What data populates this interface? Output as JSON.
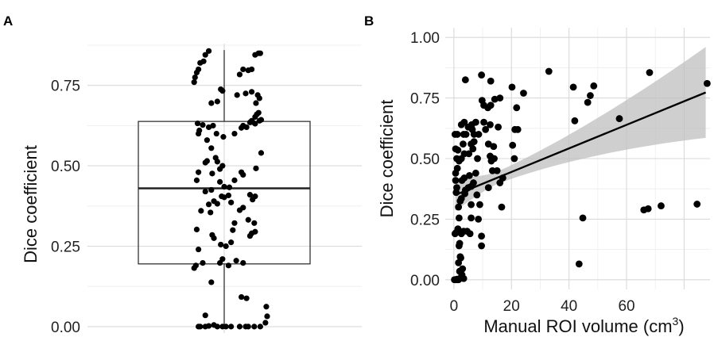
{
  "chart_data": [
    {
      "type": "boxplot",
      "panel_label": "A",
      "xlabel": "",
      "ylabel": "Dice coefficient",
      "ylim": [
        -0.02,
        0.88
      ],
      "yticks": [
        0.0,
        0.25,
        0.5,
        0.75
      ],
      "ytick_labels": [
        "0.00",
        "0.25",
        "0.50",
        "0.75"
      ],
      "grid": true,
      "box": {
        "q1": 0.195,
        "median": 0.43,
        "q3": 0.638,
        "whisker_low": 0.0,
        "whisker_high": 0.86
      },
      "points": [
        [
          -0.3,
          0.0
        ],
        [
          -0.28,
          0.0
        ],
        [
          -0.22,
          0.0
        ],
        [
          -0.18,
          0.002
        ],
        [
          -0.12,
          0.005
        ],
        [
          -0.08,
          0.0
        ],
        [
          -0.02,
          0.0
        ],
        [
          0.02,
          0.0
        ],
        [
          0.18,
          0.0
        ],
        [
          0.25,
          0.0
        ],
        [
          0.28,
          0.0
        ],
        [
          0.35,
          0.0
        ],
        [
          0.42,
          0.0
        ],
        [
          0.48,
          0.012
        ],
        [
          0.5,
          0.032
        ],
        [
          0.49,
          0.062
        ],
        [
          0.08,
          0.0
        ],
        [
          -0.22,
          0.035
        ],
        [
          -0.15,
          0.138
        ],
        [
          0.2,
          0.092
        ],
        [
          0.26,
          0.088
        ],
        [
          -0.35,
          0.182
        ],
        [
          -0.33,
          0.19
        ],
        [
          -0.25,
          0.198
        ],
        [
          -0.05,
          0.198
        ],
        [
          -0.02,
          0.21
        ],
        [
          0.05,
          0.19
        ],
        [
          0.22,
          0.198
        ],
        [
          0.14,
          0.205
        ],
        [
          -0.3,
          0.24
        ],
        [
          -0.32,
          0.302
        ],
        [
          -0.14,
          0.285
        ],
        [
          -0.12,
          0.275
        ],
        [
          -0.04,
          0.255
        ],
        [
          0.02,
          0.25
        ],
        [
          0.08,
          0.262
        ],
        [
          0.1,
          0.3
        ],
        [
          0.12,
          0.322
        ],
        [
          0.3,
          0.282
        ],
        [
          0.32,
          0.29
        ],
        [
          0.36,
          0.295
        ],
        [
          0.35,
          0.322
        ],
        [
          0.28,
          0.332
        ],
        [
          -0.27,
          0.36
        ],
        [
          -0.16,
          0.355
        ],
        [
          -0.18,
          0.38
        ],
        [
          -0.08,
          0.382
        ],
        [
          -0.12,
          0.39
        ],
        [
          -0.03,
          0.405
        ],
        [
          0.0,
          0.402
        ],
        [
          0.05,
          0.408
        ],
        [
          0.08,
          0.386
        ],
        [
          0.18,
          0.362
        ],
        [
          0.22,
          0.37
        ],
        [
          0.33,
          0.395
        ],
        [
          0.3,
          0.41
        ],
        [
          0.36,
          0.405
        ],
        [
          -0.22,
          0.42
        ],
        [
          -0.15,
          0.425
        ],
        [
          0.0,
          0.435
        ],
        [
          0.06,
          0.433
        ],
        [
          -0.05,
          0.45
        ],
        [
          0.12,
          0.455
        ],
        [
          -0.32,
          0.455
        ],
        [
          -0.3,
          0.48
        ],
        [
          -0.14,
          0.476
        ],
        [
          -0.05,
          0.49
        ],
        [
          -0.02,
          0.5
        ],
        [
          0.2,
          0.48
        ],
        [
          0.22,
          0.472
        ],
        [
          0.37,
          0.492
        ],
        [
          -0.22,
          0.51
        ],
        [
          -0.2,
          0.515
        ],
        [
          -0.1,
          0.525
        ],
        [
          -0.08,
          0.513
        ],
        [
          0.43,
          0.54
        ],
        [
          -0.3,
          0.6
        ],
        [
          -0.29,
          0.61
        ],
        [
          -0.2,
          0.58
        ],
        [
          -0.15,
          0.555
        ],
        [
          -0.09,
          0.6
        ],
        [
          -0.01,
          0.59
        ],
        [
          0.12,
          0.6
        ],
        [
          0.2,
          0.618
        ],
        [
          0.22,
          0.625
        ],
        [
          0.26,
          0.62
        ],
        [
          0.3,
          0.635
        ],
        [
          0.33,
          0.636
        ],
        [
          0.36,
          0.631
        ],
        [
          -0.31,
          0.632
        ],
        [
          -0.25,
          0.627
        ],
        [
          -0.18,
          0.62
        ],
        [
          -0.13,
          0.625
        ],
        [
          0.32,
          0.64
        ],
        [
          0.36,
          0.652
        ],
        [
          0.38,
          0.66
        ],
        [
          0.41,
          0.64
        ],
        [
          0.43,
          0.643
        ],
        [
          0.4,
          0.665
        ],
        [
          -0.15,
          0.695
        ],
        [
          -0.08,
          0.7
        ],
        [
          -0.04,
          0.738
        ],
        [
          -0.02,
          0.733
        ],
        [
          0.15,
          0.72
        ],
        [
          0.25,
          0.725
        ],
        [
          0.32,
          0.73
        ],
        [
          0.37,
          0.695
        ],
        [
          0.39,
          0.72
        ],
        [
          0.41,
          0.71
        ],
        [
          -0.35,
          0.76
        ],
        [
          -0.34,
          0.775
        ],
        [
          -0.32,
          0.79
        ],
        [
          -0.3,
          0.8
        ],
        [
          -0.28,
          0.82
        ],
        [
          -0.24,
          0.825
        ],
        [
          -0.22,
          0.845
        ],
        [
          -0.18,
          0.857
        ],
        [
          0.18,
          0.784
        ],
        [
          0.22,
          0.8
        ],
        [
          0.28,
          0.797
        ],
        [
          0.32,
          0.8
        ],
        [
          0.36,
          0.845
        ],
        [
          0.4,
          0.85
        ],
        [
          0.42,
          0.85
        ]
      ]
    },
    {
      "type": "scatter",
      "panel_label": "B",
      "xlabel": "Manual ROI volume (cm",
      "xlabel_superscript": "3",
      "xlabel_suffix": ")",
      "ylabel": "Dice coefficient",
      "xlim": [
        -3,
        89
      ],
      "ylim": [
        -0.04,
        1.04
      ],
      "xticks": [
        0,
        20,
        40,
        60
      ],
      "xtick_labels": [
        "0",
        "20",
        "40",
        "60"
      ],
      "yticks": [
        0.0,
        0.25,
        0.5,
        0.75,
        1.0
      ],
      "ytick_labels": [
        "0.00",
        "0.25",
        "0.50",
        "0.75",
        "1.00"
      ],
      "grid": true,
      "fit": {
        "x0": 0.5,
        "y0": 0.35,
        "x1": 87.5,
        "y1": 0.773,
        "ci_lower_end": 0.585,
        "ci_upper_end": 0.96,
        "ci_lower_start": 0.295,
        "ci_upper_start": 0.405
      },
      "points": [
        [
          0.2,
          0.0
        ],
        [
          0.6,
          0.0
        ],
        [
          1.0,
          0.002
        ],
        [
          1.2,
          0.0
        ],
        [
          1.6,
          0.0
        ],
        [
          2.0,
          0.005
        ],
        [
          2.8,
          0.02
        ],
        [
          3.0,
          0.045
        ],
        [
          3.4,
          0.005
        ],
        [
          2.0,
          0.035
        ],
        [
          1.6,
          0.07
        ],
        [
          2.4,
          0.09
        ],
        [
          2.2,
          0.095
        ],
        [
          43.5,
          0.065
        ],
        [
          1.8,
          0.14
        ],
        [
          2.0,
          0.15
        ],
        [
          9.6,
          0.14
        ],
        [
          0.4,
          0.19
        ],
        [
          0.8,
          0.195
        ],
        [
          1.4,
          0.21
        ],
        [
          2.0,
          0.2
        ],
        [
          2.6,
          0.19
        ],
        [
          3.4,
          0.2
        ],
        [
          4.6,
          0.2
        ],
        [
          5.6,
          0.19
        ],
        [
          9.6,
          0.18
        ],
        [
          1.8,
          0.255
        ],
        [
          6.0,
          0.255
        ],
        [
          8.5,
          0.25
        ],
        [
          44.8,
          0.255
        ],
        [
          66.0,
          0.288
        ],
        [
          67.5,
          0.293
        ],
        [
          72.0,
          0.305
        ],
        [
          84.5,
          0.312
        ],
        [
          6.0,
          0.31
        ],
        [
          1.6,
          0.3
        ],
        [
          2.2,
          0.325
        ],
        [
          2.6,
          0.335
        ],
        [
          3.8,
          0.355
        ],
        [
          0.8,
          0.36
        ],
        [
          1.0,
          0.38
        ],
        [
          4.0,
          0.37
        ],
        [
          5.0,
          0.38
        ],
        [
          6.0,
          0.385
        ],
        [
          6.8,
          0.4
        ],
        [
          8.0,
          0.35
        ],
        [
          9.0,
          0.31
        ],
        [
          12.0,
          0.38
        ],
        [
          16.6,
          0.3
        ],
        [
          0.6,
          0.41
        ],
        [
          2.8,
          0.41
        ],
        [
          3.6,
          0.42
        ],
        [
          5.4,
          0.43
        ],
        [
          7.6,
          0.44
        ],
        [
          0.6,
          0.44
        ],
        [
          1.2,
          0.46
        ],
        [
          13.4,
          0.45
        ],
        [
          15.0,
          0.45
        ],
        [
          16.0,
          0.4
        ],
        [
          17.0,
          0.42
        ],
        [
          1.0,
          0.5
        ],
        [
          1.8,
          0.49
        ],
        [
          2.6,
          0.5
        ],
        [
          3.6,
          0.52
        ],
        [
          5.2,
          0.52
        ],
        [
          6.6,
          0.54
        ],
        [
          8.2,
          0.5
        ],
        [
          12.6,
          0.51
        ],
        [
          13.0,
          0.49
        ],
        [
          14.0,
          0.5
        ],
        [
          21.0,
          0.5
        ],
        [
          0.6,
          0.54
        ],
        [
          1.4,
          0.535
        ],
        [
          3.2,
          0.56
        ],
        [
          6.0,
          0.56
        ],
        [
          7.0,
          0.57
        ],
        [
          12.0,
          0.56
        ],
        [
          13.8,
          0.55
        ],
        [
          20.4,
          0.555
        ],
        [
          0.4,
          0.6
        ],
        [
          1.2,
          0.6
        ],
        [
          3.4,
          0.6
        ],
        [
          4.2,
          0.6
        ],
        [
          6.4,
          0.62
        ],
        [
          7.0,
          0.6
        ],
        [
          8.6,
          0.6
        ],
        [
          11.0,
          0.62
        ],
        [
          2.6,
          0.64
        ],
        [
          3.6,
          0.65
        ],
        [
          5.0,
          0.63
        ],
        [
          6.2,
          0.64
        ],
        [
          7.6,
          0.65
        ],
        [
          10.4,
          0.65
        ],
        [
          12.6,
          0.64
        ],
        [
          15.4,
          0.63
        ],
        [
          21.2,
          0.62
        ],
        [
          22.2,
          0.62
        ],
        [
          57.5,
          0.665
        ],
        [
          42.0,
          0.656
        ],
        [
          10.4,
          0.72
        ],
        [
          11.8,
          0.71
        ],
        [
          12.8,
          0.72
        ],
        [
          14.2,
          0.745
        ],
        [
          16.0,
          0.75
        ],
        [
          21.8,
          0.71
        ],
        [
          24.2,
          0.77
        ],
        [
          9.8,
          0.74
        ],
        [
          41.5,
          0.795
        ],
        [
          46.5,
          0.732
        ],
        [
          48.6,
          0.8
        ],
        [
          47.4,
          0.76
        ],
        [
          4.0,
          0.825
        ],
        [
          9.6,
          0.845
        ],
        [
          12.8,
          0.82
        ],
        [
          20.2,
          0.795
        ],
        [
          33.0,
          0.86
        ],
        [
          68.0,
          0.855
        ],
        [
          88.0,
          0.81
        ]
      ]
    }
  ]
}
